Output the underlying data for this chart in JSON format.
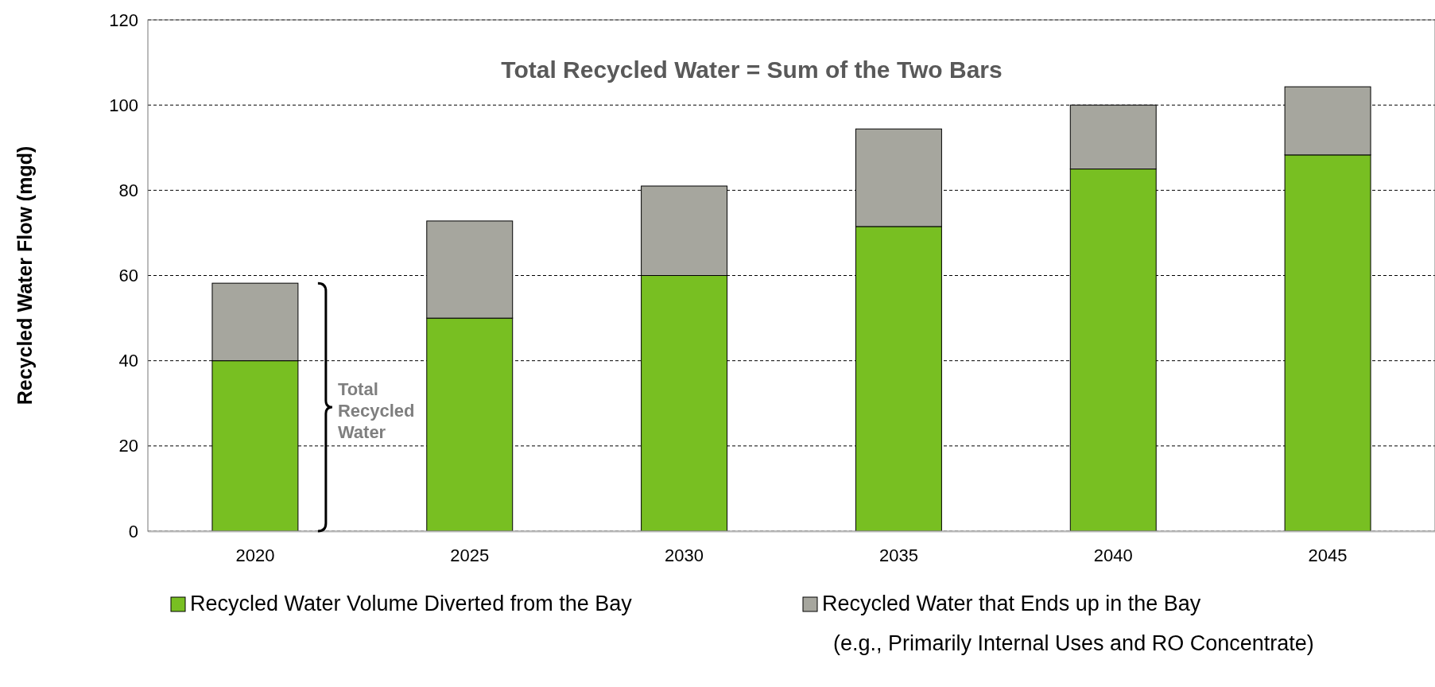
{
  "chart_data": {
    "type": "bar",
    "title": "Total Recycled Water = Sum of the Two Bars",
    "ylabel": "Recycled Water Flow (mgd)",
    "categories": [
      "2020",
      "2025",
      "2030",
      "2035",
      "2040",
      "2045"
    ],
    "stacked": true,
    "series": [
      {
        "name": "Recycled Water Volume Diverted from the Bay",
        "color": "#78bf22",
        "values": [
          40,
          50,
          60,
          71.5,
          85,
          88.3
        ]
      },
      {
        "name": "Recycled Water that Ends up in the Bay\n(e.g., Primarily Internal Uses and RO Concentrate)",
        "color": "#a6a69e",
        "values": [
          18.2,
          22.8,
          21,
          22.9,
          15,
          16
        ]
      }
    ],
    "ylim": [
      0,
      120
    ],
    "yticks": [
      0,
      20,
      40,
      60,
      80,
      100,
      120
    ],
    "grid": "y",
    "legend": "bottom",
    "annotations": [
      "Total\nRecycled\nWater"
    ]
  }
}
